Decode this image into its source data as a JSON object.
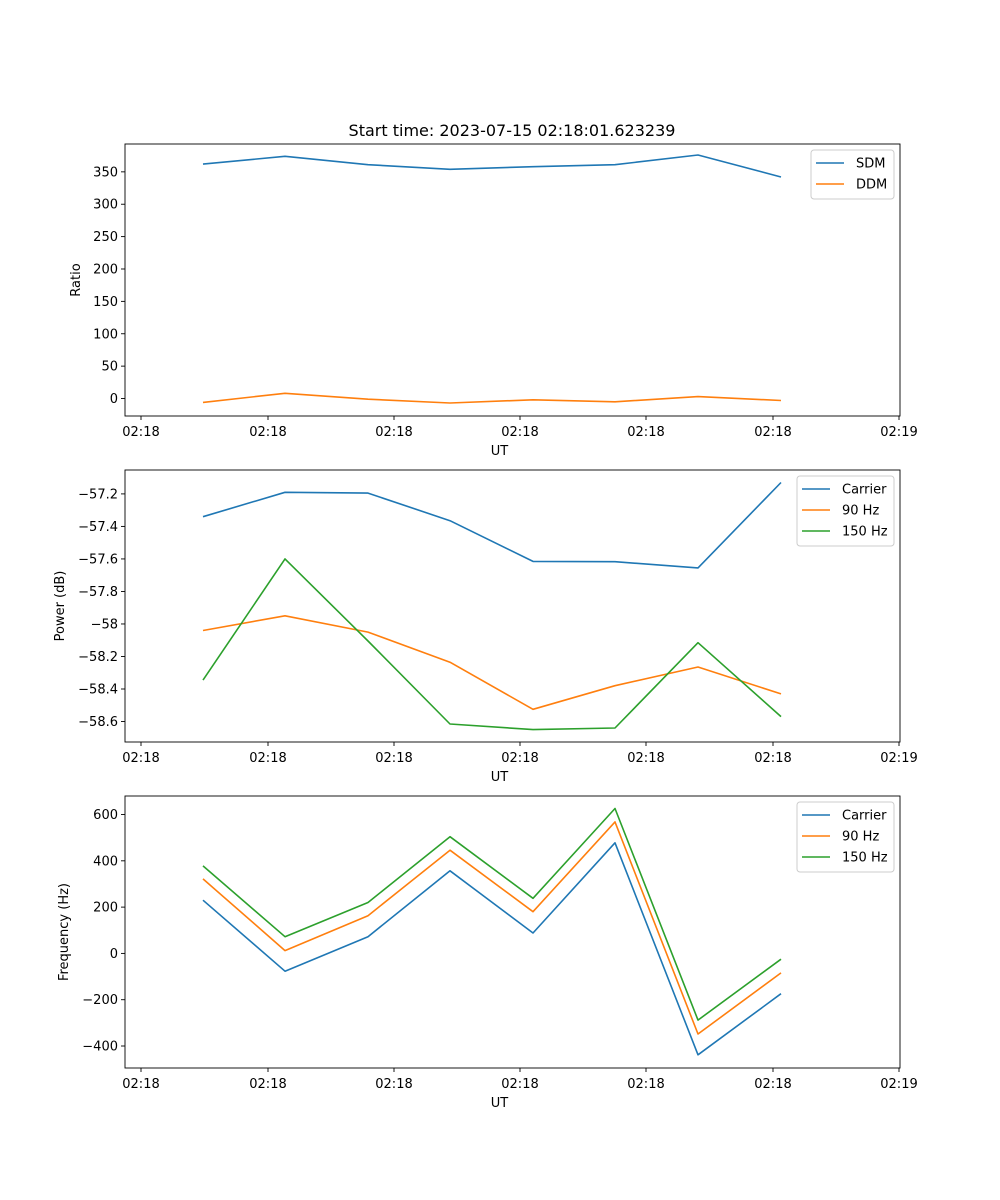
{
  "figure": {
    "title": "Start time: 2023-07-15 02:18:01.623239"
  },
  "chart_data": [
    {
      "type": "line",
      "xlabel": "UT",
      "ylabel": "Ratio",
      "xticklabels": [
        "02:18",
        "02:18",
        "02:18",
        "02:18",
        "02:18",
        "02:18",
        "02:19"
      ],
      "yticks": [
        0,
        50,
        100,
        150,
        200,
        250,
        300,
        350
      ],
      "ylim": [
        -27,
        393
      ],
      "legend_location": "upper right",
      "series": [
        {
          "name": "SDM",
          "color": "#1f77b4",
          "values": [
            362,
            374,
            361,
            354,
            358,
            361,
            376,
            342
          ]
        },
        {
          "name": "DDM",
          "color": "#ff7f0e",
          "values": [
            -6,
            8,
            -1,
            -7,
            -2,
            -5,
            3,
            -3
          ]
        }
      ]
    },
    {
      "type": "line",
      "xlabel": "UT",
      "ylabel": "Power (dB)",
      "xticklabels": [
        "02:18",
        "02:18",
        "02:18",
        "02:18",
        "02:18",
        "02:18",
        "02:19"
      ],
      "yticks": [
        -58.6,
        -58.4,
        -58.2,
        -58.0,
        -57.8,
        -57.6,
        -57.4,
        -57.2
      ],
      "ylim": [
        -58.726,
        -57.053
      ],
      "legend_location": "upper right",
      "series": [
        {
          "name": "Carrier",
          "color": "#1f77b4",
          "values": [
            -57.34,
            -57.19,
            -57.195,
            -57.365,
            -57.615,
            -57.617,
            -57.655,
            -57.13
          ]
        },
        {
          "name": "90 Hz",
          "color": "#ff7f0e",
          "values": [
            -58.04,
            -57.95,
            -58.05,
            -58.235,
            -58.525,
            -58.38,
            -58.265,
            -58.43
          ]
        },
        {
          "name": "150 Hz",
          "color": "#2ca02c",
          "values": [
            -58.345,
            -57.6,
            -58.105,
            -58.615,
            -58.65,
            -58.64,
            -58.115,
            -58.57
          ]
        }
      ]
    },
    {
      "type": "line",
      "xlabel": "UT",
      "ylabel": "Frequency (Hz)",
      "xticklabels": [
        "02:18",
        "02:18",
        "02:18",
        "02:18",
        "02:18",
        "02:18",
        "02:19"
      ],
      "yticks": [
        -400,
        -200,
        0,
        200,
        400,
        600
      ],
      "ylim": [
        -495,
        680
      ],
      "legend_location": "upper right",
      "series": [
        {
          "name": "Carrier",
          "color": "#1f77b4",
          "values": [
            230,
            -77,
            72,
            357,
            88,
            478,
            -438,
            -174
          ]
        },
        {
          "name": "90 Hz",
          "color": "#ff7f0e",
          "values": [
            322,
            12,
            163,
            446,
            180,
            568,
            -348,
            -84
          ]
        },
        {
          "name": "150 Hz",
          "color": "#2ca02c",
          "values": [
            378,
            72,
            220,
            504,
            238,
            626,
            -288,
            -25
          ]
        }
      ]
    }
  ]
}
